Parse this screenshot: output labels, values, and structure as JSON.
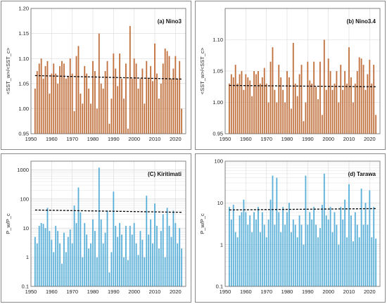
{
  "chart_data": [
    {
      "type": "bar",
      "panel_label": "(a) Nino3",
      "ylabel": "<SST_w>/<SST_c>",
      "scale": "linear",
      "ylim": [
        0.95,
        1.2
      ],
      "yticks": [
        0.95,
        1.0,
        1.05,
        1.1,
        1.15,
        1.2
      ],
      "ytick_labels": [
        "0.95",
        "1.00",
        "1.05",
        "1.10",
        "1.15",
        "1.20"
      ],
      "xlim": [
        1950,
        2025
      ],
      "xticks": [
        1950,
        1960,
        1970,
        1980,
        1990,
        2000,
        2010,
        2020
      ],
      "xtick_labels": [
        "1950",
        "1960",
        "1970",
        "1980",
        "1990",
        "2000",
        "2010",
        "2020"
      ],
      "bar_color": "#c0703c",
      "trend_line": {
        "x": [
          1952,
          2023
        ],
        "y": [
          1.066,
          1.059
        ]
      },
      "x": [
        1952,
        1953,
        1954,
        1955,
        1956,
        1957,
        1958,
        1959,
        1960,
        1961,
        1962,
        1963,
        1964,
        1965,
        1966,
        1967,
        1968,
        1969,
        1970,
        1971,
        1972,
        1973,
        1974,
        1975,
        1976,
        1977,
        1978,
        1979,
        1980,
        1981,
        1982,
        1983,
        1984,
        1985,
        1986,
        1987,
        1988,
        1989,
        1990,
        1991,
        1992,
        1993,
        1994,
        1995,
        1996,
        1997,
        1998,
        1999,
        2000,
        2001,
        2002,
        2003,
        2004,
        2005,
        2006,
        2007,
        2008,
        2009,
        2010,
        2011,
        2012,
        2013,
        2014,
        2015,
        2016,
        2017,
        2018,
        2019,
        2020,
        2021,
        2022,
        2023
      ],
      "values": [
        1.04,
        1.075,
        1.09,
        1.1,
        1.06,
        1.085,
        1.095,
        1.03,
        1.07,
        1.09,
        1.07,
        1.05,
        1.085,
        1.095,
        1.09,
        1.06,
        1.065,
        1.1,
        1.07,
        0.995,
        1.105,
        1.125,
        1.03,
        1.01,
        1.085,
        1.07,
        1.04,
        1.01,
        1.095,
        1.075,
        1.0,
        1.15,
        1.05,
        1.04,
        1.075,
        1.095,
        0.97,
        1.02,
        1.11,
        1.08,
        1.045,
        1.11,
        1.06,
        1.02,
        1.09,
        0.96,
        1.165,
        1.06,
        1.1,
        1.09,
        1.04,
        1.06,
        1.08,
        1.01,
        1.095,
        1.06,
        1.085,
        1.055,
        1.13,
        1.07,
        1.02,
        1.05,
        1.09,
        1.12,
        1.115,
        1.105,
        1.06,
        1.08,
        1.105,
        1.06,
        1.095,
        1.0
      ]
    },
    {
      "type": "bar",
      "panel_label": "(b) Nino3.4",
      "ylabel": "<SST_w>/<SST_c>",
      "scale": "linear",
      "ylim": [
        0.95,
        1.15
      ],
      "yticks": [
        0.95,
        1.0,
        1.05,
        1.1,
        1.15
      ],
      "ytick_labels": [
        "0.95",
        "1.00",
        "1.05",
        "1.10",
        ""
      ],
      "xlim": [
        1950,
        2025
      ],
      "xticks": [
        1950,
        1960,
        1970,
        1980,
        1990,
        2000,
        2010,
        2020
      ],
      "xtick_labels": [
        "1950",
        "1960",
        "1970",
        "1980",
        "1990",
        "2000",
        "2010",
        "2020"
      ],
      "bar_color": "#c0703c",
      "trend_line": {
        "x": [
          1952,
          2023
        ],
        "y": [
          1.027,
          1.025
        ]
      },
      "x": [
        1952,
        1953,
        1954,
        1955,
        1956,
        1957,
        1958,
        1959,
        1960,
        1961,
        1962,
        1963,
        1964,
        1965,
        1966,
        1967,
        1968,
        1969,
        1970,
        1971,
        1972,
        1973,
        1974,
        1975,
        1976,
        1977,
        1978,
        1979,
        1980,
        1981,
        1982,
        1983,
        1984,
        1985,
        1986,
        1987,
        1988,
        1989,
        1990,
        1991,
        1992,
        1993,
        1994,
        1995,
        1996,
        1997,
        1998,
        1999,
        2000,
        2001,
        2002,
        2003,
        2004,
        2005,
        2006,
        2007,
        2008,
        2009,
        2010,
        2011,
        2012,
        2013,
        2014,
        2015,
        2016,
        2017,
        2018,
        2019,
        2020,
        2021,
        2022,
        2023
      ],
      "values": [
        1.03,
        1.045,
        1.04,
        1.06,
        1.03,
        1.045,
        1.05,
        1.02,
        1.045,
        1.04,
        1.035,
        1.01,
        1.05,
        1.045,
        1.05,
        1.03,
        1.04,
        1.055,
        1.03,
        1.0,
        1.065,
        1.088,
        1.02,
        1.0,
        1.06,
        1.04,
        1.02,
        1.0,
        1.05,
        1.04,
        0.99,
        1.095,
        1.03,
        1.01,
        1.045,
        1.06,
        0.97,
        1.0,
        1.065,
        1.035,
        1.03,
        1.065,
        1.025,
        1.005,
        1.065,
        0.98,
        1.1,
        1.02,
        1.07,
        1.05,
        1.02,
        1.03,
        1.05,
        1.0,
        1.06,
        1.02,
        1.05,
        1.03,
        1.088,
        1.04,
        1.0,
        1.03,
        1.05,
        1.072,
        1.07,
        1.06,
        1.02,
        1.045,
        1.068,
        1.03,
        1.06,
        0.98
      ]
    },
    {
      "type": "bar",
      "panel_label": "(C) Kiritimati",
      "ylabel": "P_w/P_c",
      "scale": "log",
      "ylim": [
        0.1,
        2000
      ],
      "yticks": [
        0.1,
        1,
        10,
        100,
        1000
      ],
      "ytick_labels": [
        "0.1",
        "1",
        "10",
        "100",
        "1000"
      ],
      "xlim": [
        1950,
        2025
      ],
      "xticks": [
        1950,
        1960,
        1970,
        1980,
        1990,
        2000,
        2010,
        2020
      ],
      "xtick_labels": [
        "1950",
        "1960",
        "1970",
        "1980",
        "1990",
        "2000",
        "2010",
        "2020"
      ],
      "bar_color": "#5ab0d8",
      "trend_line": {
        "x": [
          1952,
          2023
        ],
        "y": [
          42,
          35
        ]
      },
      "x": [
        1952,
        1953,
        1954,
        1955,
        1956,
        1957,
        1958,
        1959,
        1960,
        1961,
        1962,
        1963,
        1964,
        1965,
        1966,
        1967,
        1968,
        1969,
        1970,
        1971,
        1972,
        1973,
        1974,
        1975,
        1976,
        1977,
        1978,
        1979,
        1980,
        1981,
        1982,
        1983,
        1984,
        1985,
        1986,
        1987,
        1988,
        1989,
        1990,
        1991,
        1992,
        1993,
        1994,
        1995,
        1996,
        1997,
        1998,
        1999,
        2000,
        2001,
        2002,
        2003,
        2004,
        2005,
        2006,
        2007,
        2008,
        2009,
        2010,
        2011,
        2012,
        2013,
        2014,
        2015,
        2016,
        2017,
        2018,
        2019,
        2020,
        2021,
        2022,
        2023
      ],
      "values": [
        5,
        3,
        12,
        15,
        14,
        10,
        50,
        8,
        4,
        1.5,
        12,
        8,
        3,
        0.6,
        7,
        1.5,
        5,
        9,
        3,
        60,
        15,
        250,
        35,
        1,
        15,
        6,
        2,
        3,
        20,
        8,
        1,
        1200,
        20,
        3,
        7,
        40,
        0.3,
        1.5,
        180,
        12,
        5,
        15,
        6,
        1,
        12,
        0.8,
        12,
        6,
        15,
        3,
        1.2,
        8,
        4,
        1,
        130,
        6,
        20,
        3,
        70,
        12,
        2,
        8,
        30,
        1,
        50,
        12,
        5,
        40,
        15,
        3,
        10,
        2
      ]
    },
    {
      "type": "bar",
      "panel_label": "(d) Tarawa",
      "ylabel": "P_w/P_c",
      "scale": "log",
      "ylim": [
        0.1,
        100
      ],
      "yticks": [
        0.1,
        1,
        10,
        100
      ],
      "ytick_labels": [
        "0.1",
        "1",
        "10",
        "100"
      ],
      "xlim": [
        1950,
        2025
      ],
      "xticks": [
        1950,
        1960,
        1970,
        1980,
        1990,
        2000,
        2010,
        2020
      ],
      "xtick_labels": [
        "1950",
        "1960",
        "1970",
        "1980",
        "1990",
        "2000",
        "2010",
        "2020"
      ],
      "bar_color": "#5ab0d8",
      "trend_line": {
        "x": [
          1952,
          2023
        ],
        "y": [
          6.8,
          7.3
        ]
      },
      "x": [
        1952,
        1953,
        1954,
        1955,
        1956,
        1957,
        1958,
        1959,
        1960,
        1961,
        1962,
        1963,
        1964,
        1965,
        1966,
        1967,
        1968,
        1969,
        1970,
        1971,
        1972,
        1973,
        1974,
        1975,
        1976,
        1977,
        1978,
        1979,
        1980,
        1981,
        1982,
        1983,
        1984,
        1985,
        1986,
        1987,
        1988,
        1989,
        1990,
        1991,
        1992,
        1993,
        1994,
        1995,
        1996,
        1997,
        1998,
        1999,
        2000,
        2001,
        2002,
        2003,
        2004,
        2005,
        2006,
        2007,
        2008,
        2009,
        2010,
        2011,
        2012,
        2013,
        2014,
        2015,
        2016,
        2017,
        2018,
        2019,
        2020,
        2021,
        2022,
        2023
      ],
      "values": [
        8,
        4,
        9,
        2,
        1.5,
        5,
        6,
        12,
        6,
        3,
        5,
        2,
        6,
        4,
        8,
        2,
        6,
        3,
        1.5,
        4,
        12,
        45,
        3,
        40,
        6,
        2,
        8,
        3,
        6,
        10,
        2,
        4,
        3,
        1.5,
        5,
        3,
        1,
        45,
        3,
        6,
        4,
        8,
        3,
        1.5,
        2.5,
        9,
        50,
        5,
        4,
        8,
        2,
        6,
        3,
        1,
        8,
        4,
        12,
        1.5,
        28,
        5,
        1.2,
        6,
        3,
        1.5,
        22,
        3,
        10,
        3,
        20,
        1.5,
        8,
        1.4
      ]
    }
  ]
}
